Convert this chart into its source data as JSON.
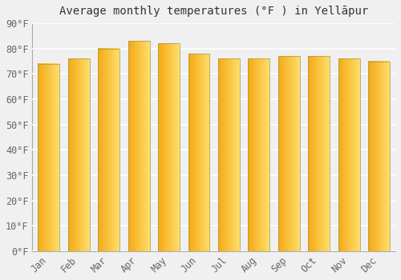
{
  "title": "Average monthly temperatures (°F ) in Yellāpur",
  "months": [
    "Jan",
    "Feb",
    "Mar",
    "Apr",
    "May",
    "Jun",
    "Jul",
    "Aug",
    "Sep",
    "Oct",
    "Nov",
    "Dec"
  ],
  "values": [
    74,
    76,
    80,
    83,
    82,
    78,
    76,
    76,
    77,
    77,
    76,
    75
  ],
  "bar_color_left": "#F5A800",
  "bar_color_right": "#FFD966",
  "bar_outline_color": "#888844",
  "background_color": "#f0f0f0",
  "plot_bg_color": "#f0f0f0",
  "grid_color": "#ffffff",
  "ylim": [
    0,
    90
  ],
  "yticks": [
    0,
    10,
    20,
    30,
    40,
    50,
    60,
    70,
    80,
    90
  ],
  "ytick_labels": [
    "0°F",
    "10°F",
    "20°F",
    "30°F",
    "40°F",
    "50°F",
    "60°F",
    "70°F",
    "80°F",
    "90°F"
  ],
  "title_fontsize": 10,
  "tick_fontsize": 8.5,
  "bar_width": 0.72,
  "tick_color": "#666666"
}
